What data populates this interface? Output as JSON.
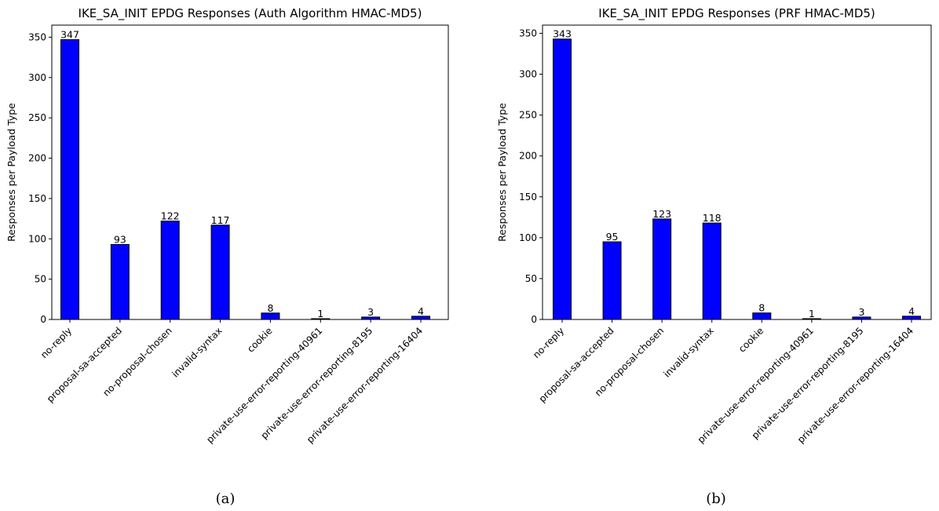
{
  "chart_data": [
    {
      "type": "bar",
      "title": "IKE_SA_INIT EPDG Responses (Auth Algorithm HMAC-MD5)",
      "caption": "(a)",
      "ylabel": "Responses per Payload Type",
      "xlabel": "",
      "categories": [
        "no-reply",
        "proposal-sa-accepted",
        "no-proposal-chosen",
        "invalid-syntax",
        "cookie",
        "private-use-error-reporting-40961",
        "private-use-error-reporting-8195",
        "private-use-error-reporting-16404"
      ],
      "values": [
        347,
        93,
        122,
        117,
        8,
        1,
        3,
        4
      ],
      "ylim": [
        0,
        365
      ],
      "yticks": [
        0,
        50,
        100,
        150,
        200,
        250,
        300,
        350
      ],
      "color": "#0000ff",
      "grid": false
    },
    {
      "type": "bar",
      "title": "IKE_SA_INIT EPDG Responses (PRF HMAC-MD5)",
      "caption": "(b)",
      "ylabel": "Responses per Payload Type",
      "xlabel": "",
      "categories": [
        "no-reply",
        "proposal-sa-accepted",
        "no-proposal-chosen",
        "invalid-syntax",
        "cookie",
        "private-use-error-reporting-40961",
        "private-use-error-reporting-8195",
        "private-use-error-reporting-16404"
      ],
      "values": [
        343,
        95,
        123,
        118,
        8,
        1,
        3,
        4
      ],
      "ylim": [
        0,
        360
      ],
      "yticks": [
        0,
        50,
        100,
        150,
        200,
        250,
        300,
        350
      ],
      "color": "#0000ff",
      "grid": false
    }
  ]
}
